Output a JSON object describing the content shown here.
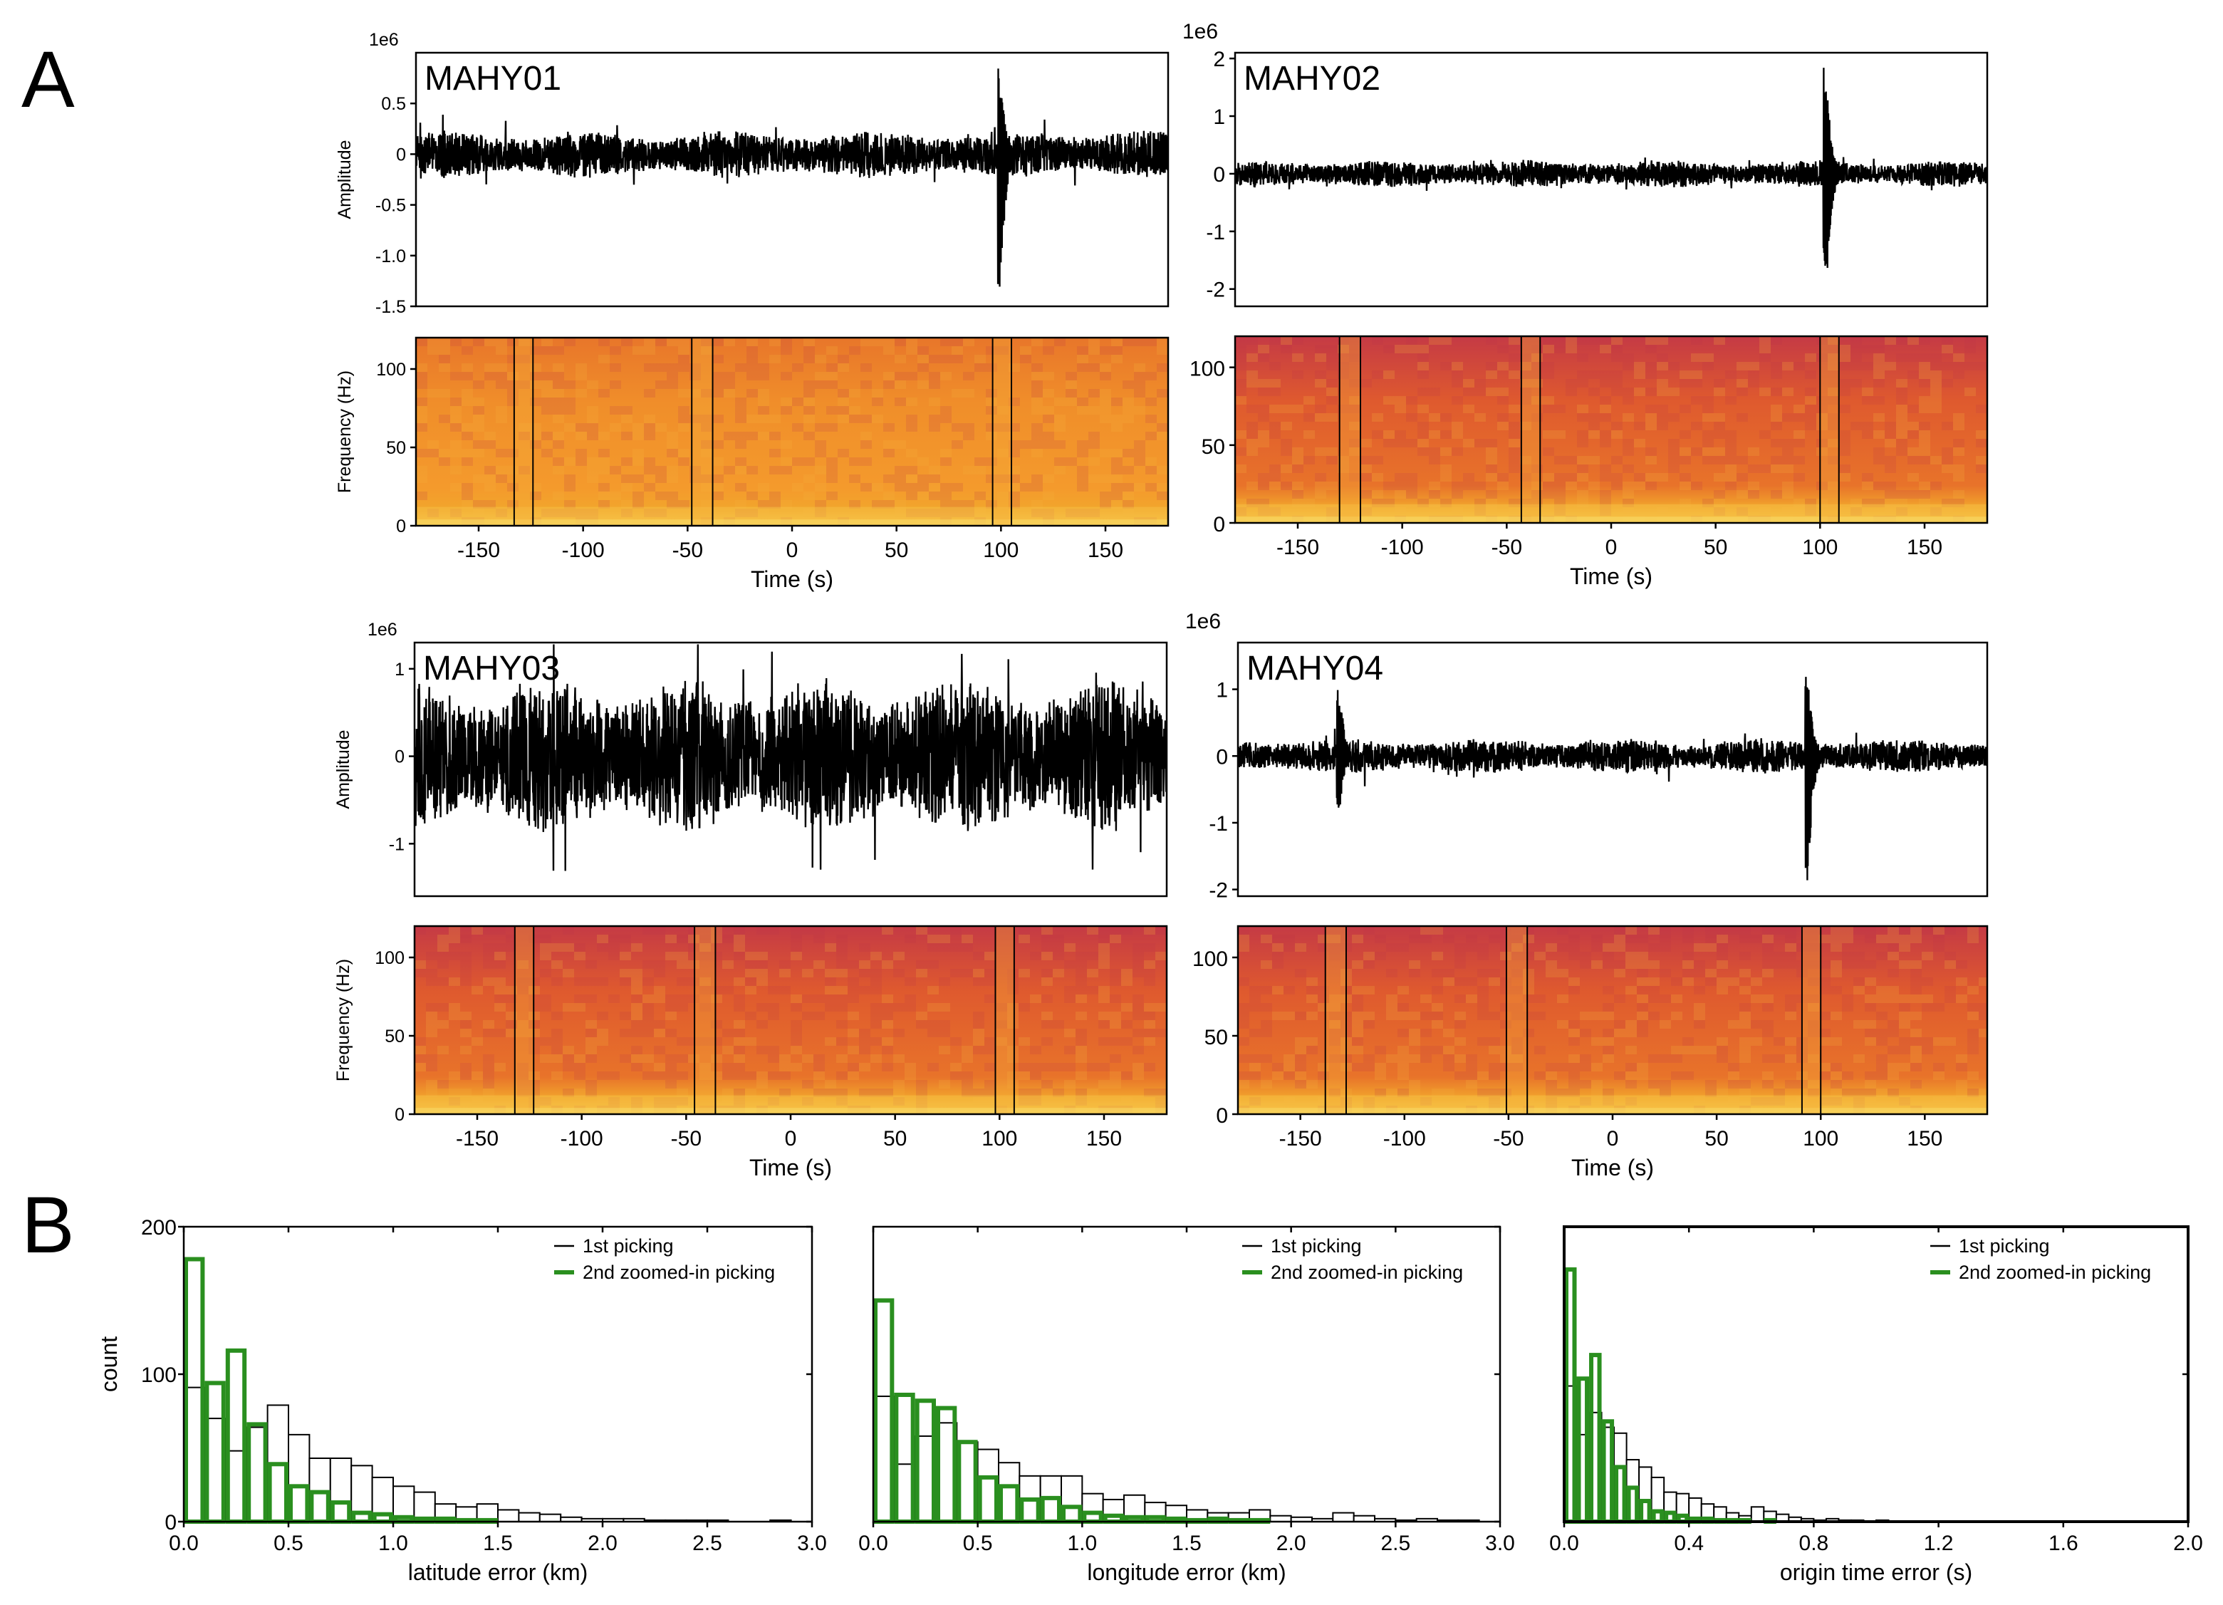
{
  "panel_labels": {
    "A": "A",
    "B": "B"
  },
  "colors": {
    "trace": "#000000",
    "green": "#2a8f1f",
    "white_bar_edge": "#000000",
    "spec_low": "#b8254d",
    "spec_mid": "#e8601c",
    "spec_high": "#f6b633"
  },
  "chart_data": [
    {
      "type": "line",
      "station": "MAHY01",
      "offset_text": "1e6",
      "ylabel": "Amplitude",
      "ylim": [
        -1.5,
        1.0
      ],
      "yticks": [
        "0.5",
        "0",
        "-0.5",
        "-1.0",
        "-1.5"
      ],
      "ytick_values": [
        0.5,
        0,
        -0.5,
        -1.0,
        -1.5
      ],
      "xlim": [
        -180,
        180
      ],
      "noise_amp": 0.2,
      "events": [
        {
          "t": 100,
          "peak_pos": 0.85,
          "peak_neg": -1.45
        }
      ]
    },
    {
      "type": "heatmap",
      "station": "MAHY01",
      "ylabel": "Frequency (Hz)",
      "xlabel": "Time (s)",
      "xlim": [
        -180,
        180
      ],
      "ylim": [
        0,
        120
      ],
      "xticks": [
        "-150",
        "-100",
        "-50",
        "0",
        "50",
        "100",
        "150"
      ],
      "xtick_values": [
        -150,
        -100,
        -50,
        0,
        50,
        100,
        150
      ],
      "yticks": [
        "100",
        "50",
        "0"
      ],
      "ytick_values": [
        100,
        50,
        0
      ],
      "intensity": 0.78,
      "windows": [
        [
          -133,
          -124
        ],
        [
          -48,
          -38
        ],
        [
          96,
          105
        ]
      ]
    },
    {
      "type": "line",
      "station": "MAHY02",
      "offset_text": "1e6",
      "ylabel": "",
      "ylim": [
        -2.3,
        2.1
      ],
      "yticks": [
        "2",
        "1",
        "0",
        "-1",
        "-2"
      ],
      "ytick_values": [
        2,
        1,
        0,
        -1,
        -2
      ],
      "xlim": [
        -180,
        180
      ],
      "noise_amp": 0.2,
      "events": [
        {
          "t": 103,
          "peak_pos": 1.9,
          "peak_neg": -2.2
        }
      ]
    },
    {
      "type": "heatmap",
      "station": "MAHY02",
      "ylabel": "",
      "xlabel": "Time (s)",
      "xlim": [
        -180,
        180
      ],
      "ylim": [
        0,
        120
      ],
      "xticks": [
        "-150",
        "-100",
        "-50",
        "0",
        "50",
        "100",
        "150"
      ],
      "xtick_values": [
        -150,
        -100,
        -50,
        0,
        50,
        100,
        150
      ],
      "yticks": [
        "100",
        "50",
        "0"
      ],
      "ytick_values": [
        100,
        50,
        0
      ],
      "intensity": 0.55,
      "windows": [
        [
          -130,
          -120
        ],
        [
          -43,
          -34
        ],
        [
          100,
          109
        ]
      ]
    },
    {
      "type": "line",
      "station": "MAHY03",
      "offset_text": "1e6",
      "ylabel": "Amplitude",
      "ylim": [
        -1.6,
        1.3
      ],
      "yticks": [
        "1",
        "0",
        "-1"
      ],
      "ytick_values": [
        1,
        0,
        -1
      ],
      "xlim": [
        -180,
        180
      ],
      "noise_amp": 0.75,
      "events": []
    },
    {
      "type": "heatmap",
      "station": "MAHY03",
      "ylabel": "Frequency (Hz)",
      "xlabel": "Time (s)",
      "xlim": [
        -180,
        180
      ],
      "ylim": [
        0,
        120
      ],
      "xticks": [
        "-150",
        "-100",
        "-50",
        "0",
        "50",
        "100",
        "150"
      ],
      "xtick_values": [
        -150,
        -100,
        -50,
        0,
        50,
        100,
        150
      ],
      "yticks": [
        "100",
        "50",
        "0"
      ],
      "ytick_values": [
        100,
        50,
        0
      ],
      "intensity": 0.5,
      "windows": [
        [
          -132,
          -123
        ],
        [
          -46,
          -36
        ],
        [
          98,
          107
        ]
      ]
    },
    {
      "type": "line",
      "station": "MAHY04",
      "offset_text": "1e6",
      "ylabel": "",
      "ylim": [
        -2.1,
        1.7
      ],
      "yticks": [
        "1",
        "0",
        "-1",
        "-2"
      ],
      "ytick_values": [
        1,
        0,
        -1,
        -2
      ],
      "xlim": [
        -180,
        180
      ],
      "noise_amp": 0.22,
      "events": [
        {
          "t": -131,
          "peak_pos": 1.1,
          "peak_neg": -0.8
        },
        {
          "t": 94,
          "peak_pos": 1.3,
          "peak_neg": -1.9
        }
      ]
    },
    {
      "type": "heatmap",
      "station": "MAHY04",
      "ylabel": "",
      "xlabel": "Time (s)",
      "xlim": [
        -180,
        180
      ],
      "ylim": [
        0,
        120
      ],
      "xticks": [
        "-150",
        "-100",
        "-50",
        "0",
        "50",
        "100",
        "150"
      ],
      "xtick_values": [
        -150,
        -100,
        -50,
        0,
        50,
        100,
        150
      ],
      "yticks": [
        "100",
        "50",
        "0"
      ],
      "ytick_values": [
        100,
        50,
        0
      ],
      "intensity": 0.45,
      "windows": [
        [
          -138,
          -128
        ],
        [
          -51,
          -41
        ],
        [
          91,
          100
        ]
      ]
    },
    {
      "type": "bar",
      "xlabel": "latitude error (km)",
      "ylabel": "count",
      "xlim": [
        0,
        3.0
      ],
      "ylim": [
        0,
        200
      ],
      "bin_width": 0.1,
      "xticks": [
        "0.0",
        "0.5",
        "1.0",
        "1.5",
        "2.0",
        "2.5",
        "3.0"
      ],
      "xtick_values": [
        0,
        0.5,
        1.0,
        1.5,
        2.0,
        2.5,
        3.0
      ],
      "yticks": [
        "200",
        "100",
        "0"
      ],
      "ytick_values": [
        200,
        100,
        0
      ],
      "series": [
        {
          "name": "1st picking",
          "values": [
            91,
            70,
            48,
            64,
            79,
            59,
            43,
            43,
            38,
            30,
            24,
            20,
            12,
            10,
            12,
            8,
            6,
            5,
            3,
            2,
            2,
            2,
            1,
            1,
            1,
            1,
            0,
            0,
            1,
            0
          ]
        },
        {
          "name": "2nd zoomed-in picking",
          "values": [
            178,
            94,
            116,
            66,
            39,
            24,
            20,
            13,
            6,
            5,
            3,
            2,
            2,
            1,
            1,
            0,
            0,
            0,
            0,
            0,
            0,
            0,
            0,
            0,
            0,
            0,
            0,
            0,
            0,
            0
          ]
        }
      ]
    },
    {
      "type": "bar",
      "xlabel": "longitude error (km)",
      "ylabel": "",
      "xlim": [
        0,
        3.0
      ],
      "ylim": [
        0,
        200
      ],
      "bin_width": 0.1,
      "xticks": [
        "0.0",
        "0.5",
        "1.0",
        "1.5",
        "2.0",
        "2.5",
        "3.0"
      ],
      "xtick_values": [
        0,
        0.5,
        1.0,
        1.5,
        2.0,
        2.5,
        3.0
      ],
      "series": [
        {
          "name": "1st picking",
          "values": [
            85,
            39,
            58,
            67,
            54,
            49,
            40,
            31,
            31,
            31,
            19,
            15,
            18,
            13,
            11,
            8,
            6,
            6,
            8,
            4,
            3,
            2,
            6,
            4,
            2,
            1,
            2,
            1,
            1,
            0
          ]
        },
        {
          "name": "2nd zoomed-in picking",
          "values": [
            150,
            86,
            82,
            77,
            54,
            30,
            24,
            15,
            16,
            10,
            6,
            4,
            3,
            3,
            2,
            1,
            2,
            1,
            1,
            0,
            0,
            0,
            0,
            0,
            0,
            0,
            0,
            0,
            0,
            0
          ]
        }
      ]
    },
    {
      "type": "bar",
      "xlabel": "origin time error (s)",
      "ylabel": "",
      "xlim": [
        0,
        2.0
      ],
      "ylim": [
        0,
        200
      ],
      "bin_width": 0.04,
      "xticks": [
        "0.0",
        "0.4",
        "0.8",
        "1.2",
        "1.6",
        "2.0"
      ],
      "xtick_values": [
        0,
        0.4,
        0.8,
        1.2,
        1.6,
        2.0
      ],
      "series": [
        {
          "name": "1st picking",
          "values": [
            92,
            59,
            74,
            64,
            60,
            42,
            37,
            30,
            20,
            19,
            16,
            12,
            10,
            6,
            4,
            10,
            7,
            5,
            3,
            2,
            1,
            2,
            1,
            1,
            0,
            1,
            0,
            0,
            0,
            0
          ]
        },
        {
          "name": "2nd zoomed-in picking",
          "values": [
            171,
            97,
            113,
            68,
            37,
            23,
            14,
            7,
            6,
            4,
            2,
            2,
            1,
            1,
            1,
            0,
            1,
            0,
            0,
            0,
            0,
            0,
            0,
            0,
            0,
            0,
            0,
            0,
            0,
            0
          ]
        }
      ]
    }
  ]
}
